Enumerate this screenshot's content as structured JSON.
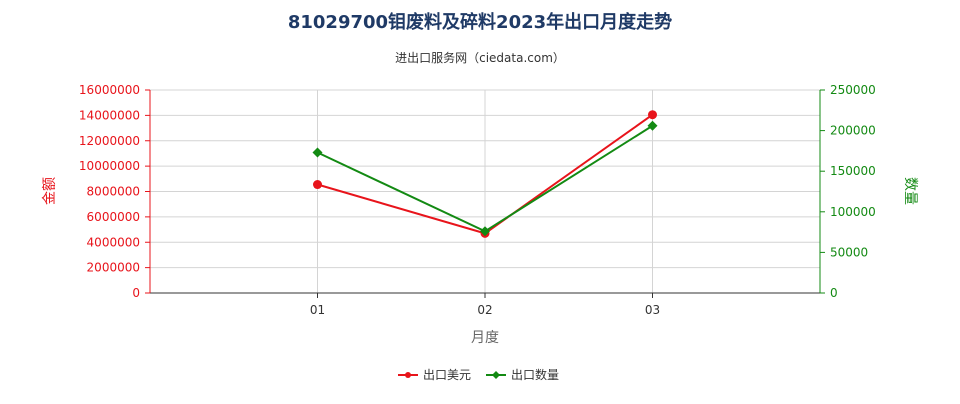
{
  "chart_data": {
    "type": "line",
    "title": "81029700钼废料及碎料2023年出口月度走势",
    "subtitle": "进出口服务网（ciedata.com）",
    "categories": [
      "01",
      "02",
      "03"
    ],
    "xlabel": "月度",
    "ylabel_left": "金额",
    "ylabel_right": "数量",
    "ylim_left": [
      0,
      16000000
    ],
    "yticks_left": [
      "0",
      "2000000",
      "4000000",
      "6000000",
      "8000000",
      "10000000",
      "12000000",
      "14000000",
      "16000000"
    ],
    "ylim_right": [
      0,
      250000
    ],
    "yticks_right": [
      "0",
      "50000",
      "100000",
      "150000",
      "200000",
      "250000"
    ],
    "series": [
      {
        "name": "出口美元",
        "axis": "left",
        "color": "#e8141b",
        "marker": "circle",
        "values": [
          8550000,
          4700000,
          14050000
        ]
      },
      {
        "name": "出口数量",
        "axis": "right",
        "color": "#138a13",
        "marker": "diamond",
        "values": [
          173000,
          76000,
          206000
        ]
      }
    ],
    "grid": true,
    "legend_position": "bottom-center"
  }
}
